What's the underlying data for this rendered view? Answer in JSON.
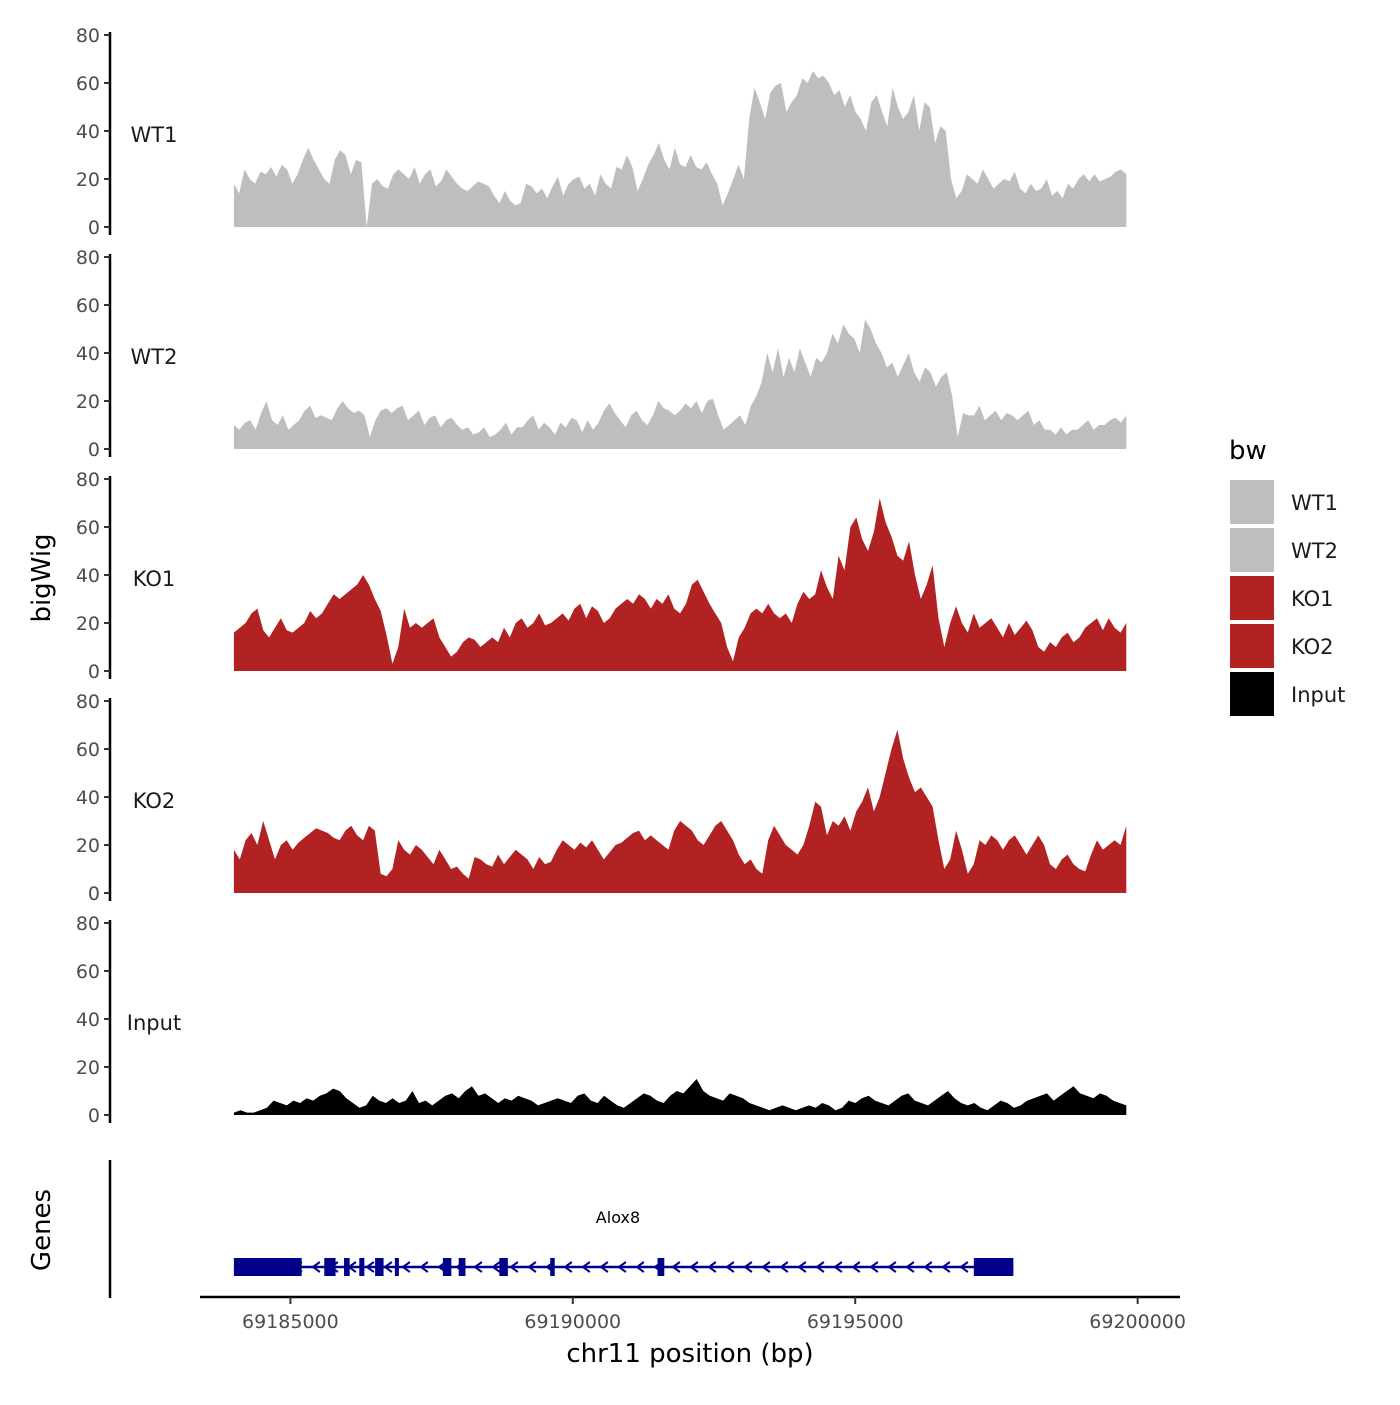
{
  "chart_data": {
    "type": "area",
    "ylabel": "bigWig",
    "xlabel": "chr11 position (bp)",
    "ylim": [
      0,
      80
    ],
    "yticks": [
      0,
      20,
      40,
      60,
      80
    ],
    "xlim": [
      69183400,
      69200750
    ],
    "xticks": [
      69185000,
      69190000,
      69195000,
      69200000
    ],
    "xtick_labels": [
      "69185000",
      "69190000",
      "69195000",
      "69200000"
    ],
    "x_start": 69184000,
    "x_end": 69199800,
    "legend": {
      "title": "bw",
      "position": "right",
      "entries": [
        {
          "label": "WT1",
          "color": "#bebebe"
        },
        {
          "label": "WT2",
          "color": "#bebebe"
        },
        {
          "label": "KO1",
          "color": "#b22222"
        },
        {
          "label": "KO2",
          "color": "#b22222"
        },
        {
          "label": "Input",
          "color": "#000000"
        }
      ]
    },
    "series": [
      {
        "name": "WT1",
        "color": "#bebebe",
        "values": [
          18,
          14,
          24,
          20,
          18,
          23,
          22,
          25,
          21,
          26,
          24,
          18,
          22,
          28,
          33,
          28,
          24,
          20,
          18,
          28,
          32,
          30,
          22,
          28,
          27,
          0,
          18,
          20,
          17,
          16,
          22,
          24,
          22,
          20,
          25,
          18,
          22,
          24,
          17,
          19,
          24,
          21,
          18,
          16,
          15,
          17,
          19,
          18,
          17,
          13,
          10,
          15,
          11,
          9,
          10,
          18,
          17,
          14,
          16,
          12,
          17,
          21,
          13,
          18,
          20,
          21,
          16,
          18,
          13,
          22,
          18,
          16,
          25,
          24,
          30,
          25,
          15,
          20,
          26,
          30,
          35,
          28,
          24,
          33,
          26,
          25,
          30,
          25,
          24,
          27,
          22,
          18,
          9,
          14,
          20,
          26,
          20,
          45,
          58,
          52,
          45,
          56,
          59,
          60,
          48,
          52,
          55,
          62,
          60,
          65,
          62,
          63,
          60,
          55,
          57,
          50,
          55,
          48,
          45,
          40,
          52,
          55,
          48,
          42,
          58,
          50,
          45,
          48,
          55,
          40,
          52,
          50,
          35,
          42,
          40,
          20,
          12,
          15,
          22,
          20,
          18,
          24,
          20,
          16,
          18,
          20,
          19,
          23,
          16,
          14,
          18,
          15,
          16,
          20,
          13,
          15,
          12,
          18,
          16,
          20,
          22,
          19,
          22,
          19,
          20,
          21,
          23,
          24,
          22
        ]
      },
      {
        "name": "WT2",
        "color": "#bebebe",
        "values": [
          10,
          8,
          11,
          12,
          8,
          15,
          20,
          12,
          10,
          14,
          8,
          10,
          12,
          16,
          18,
          13,
          14,
          13,
          12,
          17,
          20,
          17,
          15,
          16,
          14,
          5,
          12,
          16,
          17,
          15,
          17,
          18,
          12,
          14,
          16,
          10,
          13,
          14,
          9,
          12,
          13,
          10,
          8,
          9,
          6,
          7,
          9,
          5,
          6,
          8,
          11,
          6,
          9,
          9,
          12,
          14,
          8,
          11,
          9,
          6,
          11,
          9,
          13,
          12,
          7,
          12,
          8,
          11,
          16,
          19,
          15,
          12,
          9,
          14,
          16,
          12,
          10,
          14,
          20,
          17,
          16,
          14,
          16,
          19,
          17,
          20,
          15,
          20,
          21,
          14,
          8,
          10,
          12,
          14,
          10,
          18,
          22,
          28,
          40,
          32,
          42,
          30,
          38,
          32,
          42,
          36,
          30,
          38,
          36,
          40,
          48,
          44,
          52,
          48,
          46,
          40,
          54,
          50,
          44,
          40,
          34,
          36,
          30,
          35,
          40,
          32,
          28,
          34,
          32,
          26,
          30,
          32,
          22,
          5,
          15,
          14,
          14,
          18,
          12,
          14,
          16,
          12,
          15,
          14,
          12,
          14,
          16,
          10,
          12,
          8,
          8,
          6,
          9,
          6,
          8,
          8,
          10,
          12,
          8,
          10,
          10,
          12,
          13,
          11,
          14
        ]
      },
      {
        "name": "KO1",
        "color": "#b22222",
        "values": [
          16,
          18,
          20,
          24,
          26,
          17,
          14,
          18,
          22,
          17,
          16,
          18,
          20,
          25,
          22,
          24,
          28,
          32,
          30,
          32,
          34,
          36,
          40,
          36,
          30,
          25,
          15,
          3,
          10,
          26,
          18,
          20,
          18,
          20,
          22,
          14,
          10,
          6,
          8,
          12,
          14,
          13,
          10,
          12,
          14,
          12,
          18,
          14,
          20,
          22,
          18,
          20,
          24,
          19,
          20,
          22,
          24,
          21,
          26,
          28,
          22,
          27,
          25,
          20,
          22,
          26,
          28,
          30,
          28,
          32,
          30,
          26,
          30,
          28,
          32,
          26,
          24,
          28,
          36,
          38,
          33,
          28,
          24,
          20,
          10,
          4,
          14,
          18,
          24,
          26,
          24,
          28,
          24,
          22,
          24,
          20,
          28,
          33,
          30,
          32,
          42,
          35,
          30,
          48,
          42,
          60,
          64,
          55,
          50,
          58,
          72,
          62,
          56,
          48,
          46,
          54,
          40,
          30,
          36,
          44,
          22,
          10,
          20,
          27,
          20,
          16,
          24,
          18,
          20,
          22,
          18,
          14,
          20,
          15,
          18,
          21,
          17,
          10,
          8,
          12,
          10,
          14,
          16,
          12,
          14,
          18,
          20,
          22,
          17,
          22,
          18,
          16,
          20
        ]
      },
      {
        "name": "KO2",
        "color": "#b22222",
        "values": [
          18,
          14,
          22,
          25,
          20,
          30,
          22,
          14,
          20,
          22,
          18,
          21,
          23,
          25,
          27,
          26,
          25,
          23,
          22,
          26,
          28,
          24,
          22,
          28,
          26,
          8,
          7,
          10,
          22,
          18,
          16,
          20,
          18,
          15,
          12,
          18,
          14,
          10,
          11,
          8,
          6,
          15,
          14,
          12,
          11,
          16,
          12,
          15,
          18,
          16,
          14,
          10,
          15,
          12,
          13,
          18,
          22,
          20,
          18,
          21,
          19,
          22,
          18,
          14,
          17,
          20,
          21,
          23,
          25,
          26,
          22,
          24,
          22,
          20,
          18,
          26,
          30,
          28,
          26,
          22,
          20,
          24,
          28,
          30,
          26,
          22,
          16,
          12,
          14,
          10,
          8,
          22,
          28,
          24,
          20,
          18,
          16,
          20,
          28,
          38,
          36,
          24,
          30,
          28,
          32,
          26,
          34,
          38,
          44,
          34,
          40,
          50,
          60,
          68,
          56,
          48,
          42,
          44,
          40,
          36,
          22,
          10,
          14,
          26,
          18,
          8,
          12,
          22,
          20,
          24,
          22,
          18,
          22,
          24,
          20,
          16,
          20,
          24,
          20,
          12,
          10,
          14,
          16,
          12,
          10,
          9,
          16,
          22,
          18,
          20,
          22,
          20,
          28
        ]
      },
      {
        "name": "Input",
        "color": "#000000",
        "values": [
          1,
          2,
          1,
          1,
          2,
          3,
          6,
          5,
          4,
          6,
          5,
          7,
          6,
          8,
          9,
          11,
          10,
          7,
          5,
          3,
          4,
          8,
          6,
          5,
          7,
          5,
          6,
          10,
          5,
          6,
          4,
          6,
          8,
          9,
          7,
          10,
          12,
          8,
          9,
          7,
          5,
          7,
          6,
          8,
          7,
          6,
          4,
          5,
          6,
          7,
          6,
          5,
          8,
          9,
          6,
          5,
          8,
          6,
          4,
          3,
          5,
          7,
          9,
          8,
          6,
          5,
          8,
          10,
          9,
          12,
          15,
          10,
          8,
          7,
          6,
          9,
          8,
          7,
          5,
          4,
          3,
          2,
          3,
          4,
          3,
          2,
          3,
          4,
          3,
          5,
          4,
          2,
          3,
          6,
          5,
          7,
          8,
          6,
          5,
          4,
          6,
          8,
          9,
          6,
          5,
          4,
          6,
          8,
          10,
          7,
          5,
          4,
          5,
          3,
          2,
          4,
          6,
          5,
          3,
          4,
          6,
          7,
          8,
          9,
          6,
          8,
          10,
          12,
          9,
          8,
          7,
          9,
          8,
          6,
          5,
          4
        ]
      }
    ],
    "gene": {
      "name": "Alox8",
      "start": 69184000,
      "end": 69197800,
      "strand": "-",
      "color": "#00008b",
      "exons": [
        [
          69184000,
          69185200
        ],
        [
          69185600,
          69185800
        ],
        [
          69185950,
          69186050
        ],
        [
          69186220,
          69186310
        ],
        [
          69186500,
          69186650
        ],
        [
          69186850,
          69186900
        ],
        [
          69187700,
          69187850
        ],
        [
          69187980,
          69188100
        ],
        [
          69188700,
          69188850
        ],
        [
          69189600,
          69189680
        ],
        [
          69191500,
          69191620
        ],
        [
          69197100,
          69197800
        ]
      ]
    },
    "genes_track_label": "Genes"
  }
}
